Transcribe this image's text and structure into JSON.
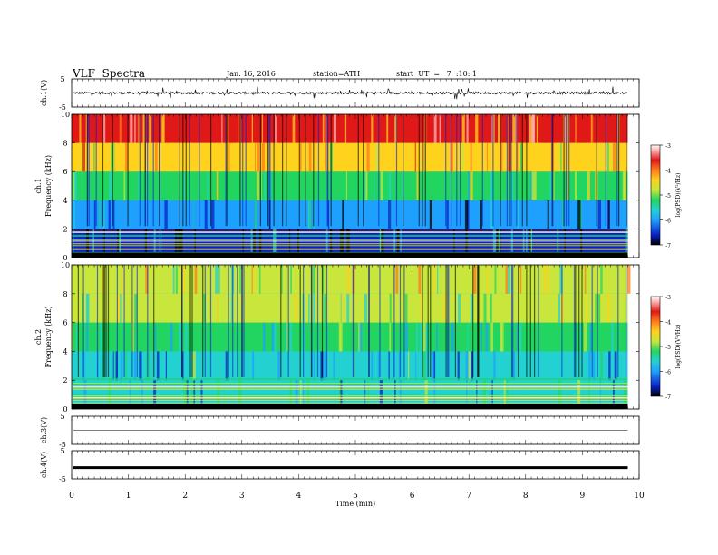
{
  "header": {
    "title": "VLF  Spectra",
    "date": "Jan. 16, 2016",
    "station": "station=ATH",
    "start": "start  UT  =   7  :10: 1"
  },
  "chart_data": [
    {
      "type": "line",
      "panel": "ch1-waveform",
      "ylabel": "ch.1(V)",
      "yticks": [
        "5",
        "-5"
      ],
      "ylim": [
        -5,
        5
      ],
      "xlim": [
        0,
        10
      ],
      "note_values": "dense noise trace with baseline near 0 V, excursions about +/-1.5 V"
    },
    {
      "type": "heatmap",
      "panel": "ch1-spectrogram",
      "ylabel": "Frequency  (kHz)",
      "channel_label": "ch.1",
      "yticks": [
        "0",
        "2",
        "4",
        "6",
        "8",
        "10"
      ],
      "ylim": [
        0,
        10
      ],
      "xlim": [
        0,
        9.8
      ],
      "colorbar": {
        "label": "log(PSD)(V²/Hz)",
        "ticks": [
          "-3",
          "-4",
          "-5",
          "-6",
          "-7"
        ],
        "range": [
          -7,
          -3
        ],
        "colors": [
          "#000000",
          "#0a1fc8",
          "#1ea0ff",
          "#23d1d1",
          "#22d460",
          "#c8e63c",
          "#ffd21e",
          "#ff7a1e",
          "#e01818",
          "#ffb4b4",
          "#ffffff"
        ]
      },
      "bands": [
        {
          "from_khz": 0,
          "to_khz": 2,
          "level": -6.6
        },
        {
          "from_khz": 2,
          "to_khz": 4,
          "level": -6.3
        },
        {
          "from_khz": 4,
          "to_khz": 6,
          "level": -5.3
        },
        {
          "from_khz": 6,
          "to_khz": 8,
          "level": -4.6
        },
        {
          "from_khz": 8,
          "to_khz": 10,
          "level": -4.0
        }
      ]
    },
    {
      "type": "heatmap",
      "panel": "ch2-spectrogram",
      "ylabel": "Frequency  (kHz)",
      "channel_label": "ch.2",
      "yticks": [
        "0",
        "2",
        "4",
        "6",
        "8",
        "10"
      ],
      "ylim": [
        0,
        10
      ],
      "xlim": [
        0,
        9.8
      ],
      "colorbar": {
        "label": "log(PSD)(V²/Hz)",
        "ticks": [
          "-3",
          "-4",
          "-5",
          "-6",
          "-7"
        ],
        "range": [
          -7,
          -3
        ]
      },
      "bands": [
        {
          "from_khz": 0,
          "to_khz": 2,
          "level": -5.9
        },
        {
          "from_khz": 2,
          "to_khz": 4,
          "level": -5.9
        },
        {
          "from_khz": 4,
          "to_khz": 6,
          "level": -5.6
        },
        {
          "from_khz": 6,
          "to_khz": 8,
          "level": -5.2
        },
        {
          "from_khz": 8,
          "to_khz": 10,
          "level": -5.0
        }
      ]
    },
    {
      "type": "line",
      "panel": "ch3-waveform",
      "ylabel": "ch.3(V)",
      "yticks": [
        "5",
        "-5"
      ],
      "ylim": [
        -5,
        5
      ],
      "xlim": [
        0,
        10
      ],
      "note_values": "flat line near 0 V"
    },
    {
      "type": "line",
      "panel": "ch4-waveform",
      "ylabel": "ch.4(V)",
      "yticks": [
        "5",
        "-5"
      ],
      "ylim": [
        -5,
        5
      ],
      "xlim": [
        0,
        10
      ],
      "note_values": "thick flat trace near -1 V"
    }
  ],
  "xaxis": {
    "label": "Time  (min)",
    "ticks": [
      "0",
      "1",
      "2",
      "3",
      "4",
      "5",
      "6",
      "7",
      "8",
      "9",
      "10"
    ]
  }
}
